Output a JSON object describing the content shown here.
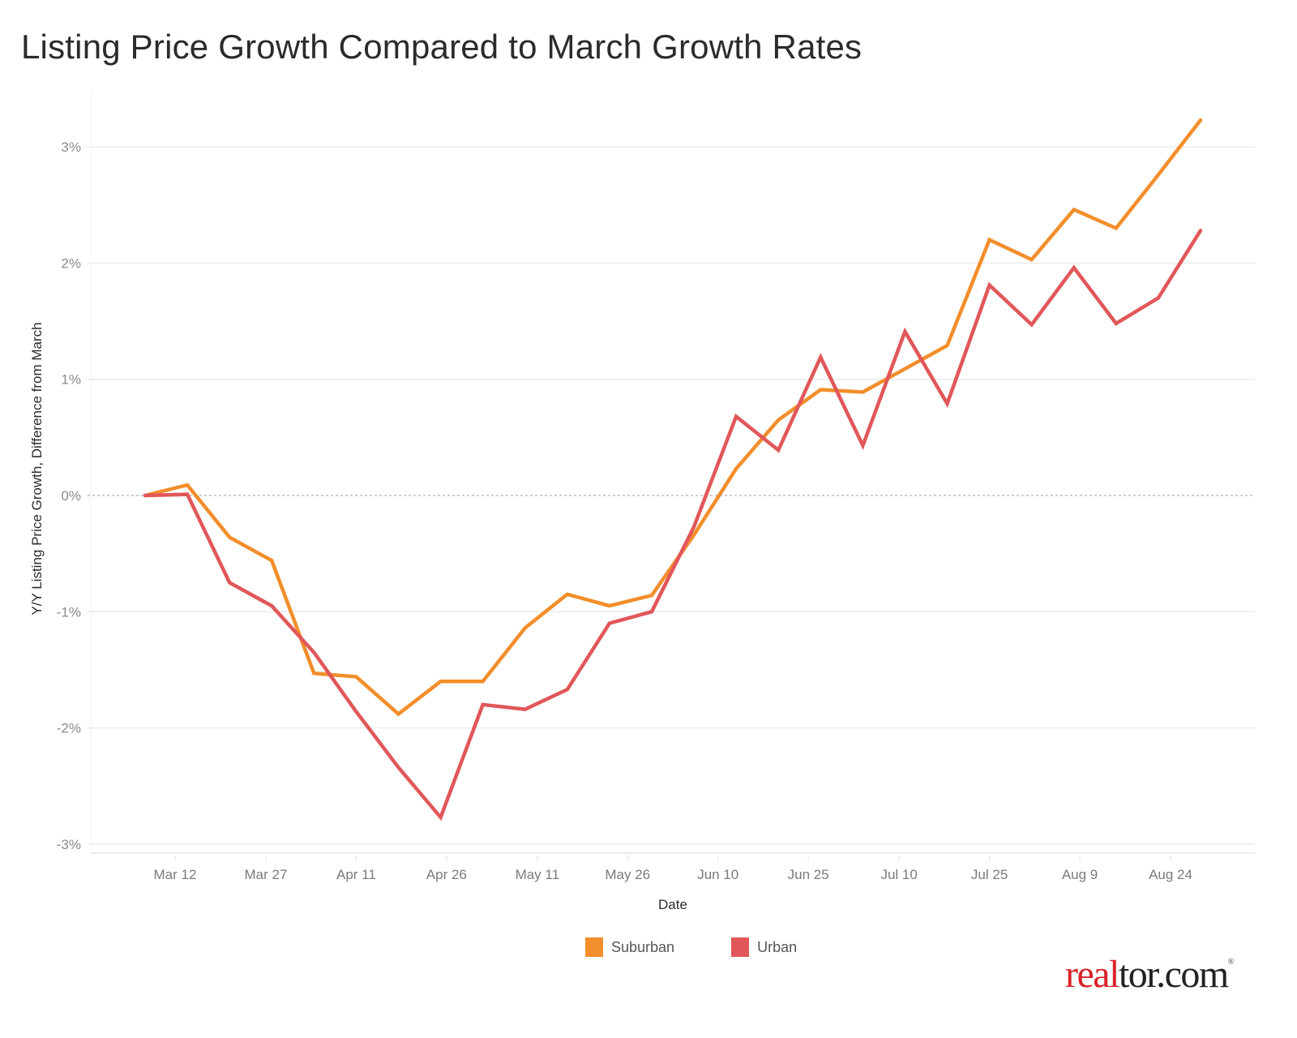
{
  "title": "Listing Price Growth Compared to March Growth Rates",
  "logo": {
    "part1": "real",
    "part2": "tor.com",
    "mark": "®"
  },
  "chart_data": {
    "type": "line",
    "title": "Listing Price Growth Compared to March Growth Rates",
    "xlabel": "Date",
    "ylabel": "Y/Y Listing Price Growth, Difference from March",
    "ylim": [
      -3.05,
      3.45
    ],
    "yticks": [
      3,
      2,
      1,
      0,
      -1,
      -2,
      -3
    ],
    "ytick_labels": [
      "3%",
      "2%",
      "1%",
      "0%",
      "-1%",
      "-2%",
      "-3%"
    ],
    "x_dates": [
      "Mar 7",
      "Mar 14",
      "Mar 21",
      "Mar 28",
      "Apr 4",
      "Apr 11",
      "Apr 18",
      "Apr 25",
      "May 2",
      "May 9",
      "May 16",
      "May 23",
      "May 30",
      "Jun 6",
      "Jun 13",
      "Jun 20",
      "Jun 27",
      "Jul 4",
      "Jul 11",
      "Jul 18",
      "Jul 25",
      "Aug 1",
      "Aug 8",
      "Aug 15",
      "Aug 22",
      "Aug 29"
    ],
    "xticks": [
      {
        "label": "Mar 12",
        "pos": 0.71
      },
      {
        "label": "Mar 27",
        "pos": 2.86
      },
      {
        "label": "Apr 11",
        "pos": 5.0
      },
      {
        "label": "Apr 26",
        "pos": 7.14
      },
      {
        "label": "May 11",
        "pos": 9.29
      },
      {
        "label": "May 26",
        "pos": 11.43
      },
      {
        "label": "Jun 10",
        "pos": 13.57
      },
      {
        "label": "Jun 25",
        "pos": 15.71
      },
      {
        "label": "Jul 10",
        "pos": 17.86
      },
      {
        "label": "Jul 25",
        "pos": 20.0
      },
      {
        "label": "Aug 9",
        "pos": 22.14
      },
      {
        "label": "Aug 24",
        "pos": 24.29
      }
    ],
    "zero_line": "dotted",
    "grid": true,
    "legend_position": "bottom-center",
    "series": [
      {
        "name": "Suburban",
        "color": "#f28e2b",
        "values": [
          0.0,
          0.09,
          -0.36,
          -0.56,
          -1.53,
          -1.56,
          -1.88,
          -1.6,
          -1.6,
          -1.14,
          -0.85,
          -0.95,
          -0.86,
          -0.34,
          0.23,
          0.65,
          0.91,
          0.89,
          1.09,
          1.29,
          2.2,
          2.03,
          2.46,
          2.3,
          2.76,
          3.23
        ]
      },
      {
        "name": "Urban",
        "color": "#e15759",
        "values": [
          0.0,
          0.01,
          -0.75,
          -0.95,
          -1.35,
          -1.86,
          -2.34,
          -2.77,
          -1.8,
          -1.84,
          -1.67,
          -1.1,
          -1.0,
          -0.27,
          0.68,
          0.39,
          1.19,
          0.43,
          1.41,
          0.79,
          1.81,
          1.47,
          1.96,
          1.48,
          1.7,
          2.28
        ]
      }
    ]
  }
}
